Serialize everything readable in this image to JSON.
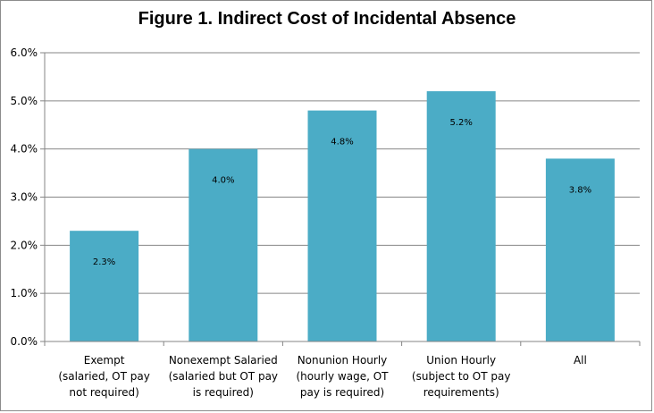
{
  "chart_data": {
    "type": "bar",
    "title": "Figure 1. Indirect Cost of Incidental Absence",
    "categories": [
      [
        "Exempt",
        "(salaried, OT pay",
        "not required)"
      ],
      [
        "Nonexempt Salaried",
        "(salaried but OT pay",
        "is required)"
      ],
      [
        "Nonunion Hourly",
        "(hourly wage, OT",
        "pay is required)"
      ],
      [
        "Union Hourly",
        "(subject to  OT pay",
        "requirements)"
      ],
      [
        "All"
      ]
    ],
    "values": [
      2.3,
      4.0,
      4.8,
      5.2,
      3.8
    ],
    "data_labels": [
      "2.3%",
      "4.0%",
      "4.8%",
      "5.2%",
      "3.8%"
    ],
    "ylim": [
      0,
      6
    ],
    "yticks": [
      "0.0%",
      "1.0%",
      "2.0%",
      "3.0%",
      "4.0%",
      "5.0%",
      "6.0%"
    ],
    "xlabel": "",
    "ylabel": "",
    "grid": true,
    "legend": "none",
    "colors": {
      "bar": "#4BACC6",
      "grid": "#868686",
      "axis": "#868686"
    }
  }
}
